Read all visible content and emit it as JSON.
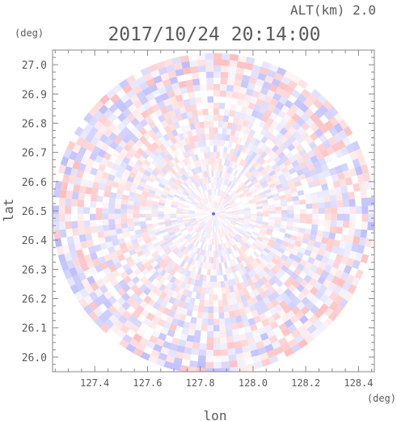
{
  "chart_data": {
    "type": "heatmap",
    "subtype": "polar radar scan",
    "title": "2017/10/24 20:14:00",
    "altitude_label": "ALT(km) 2.0",
    "xlabel": "lon",
    "ylabel": "lat",
    "x_unit": "(deg)",
    "y_unit": "(deg)",
    "xlim": [
      127.24,
      128.46
    ],
    "ylim": [
      25.95,
      27.05
    ],
    "x_ticks": [
      "127.4",
      "127.6",
      "127.8",
      "128.0",
      "128.2",
      "128.4"
    ],
    "y_ticks": [
      "26.0",
      "26.1",
      "26.2",
      "26.3",
      "26.4",
      "26.5",
      "26.6",
      "26.7",
      "26.8",
      "26.9",
      "27.0"
    ],
    "center": {
      "lon": 127.85,
      "lat": 26.49
    },
    "range_deg": {
      "lon": 0.61,
      "lat": 0.55
    },
    "value_range": [
      -1,
      1
    ],
    "colors": {
      "negative": "#8080ff",
      "positive": "#ff8080",
      "zero": "#ffffff"
    },
    "grid": false,
    "legend": "none"
  }
}
